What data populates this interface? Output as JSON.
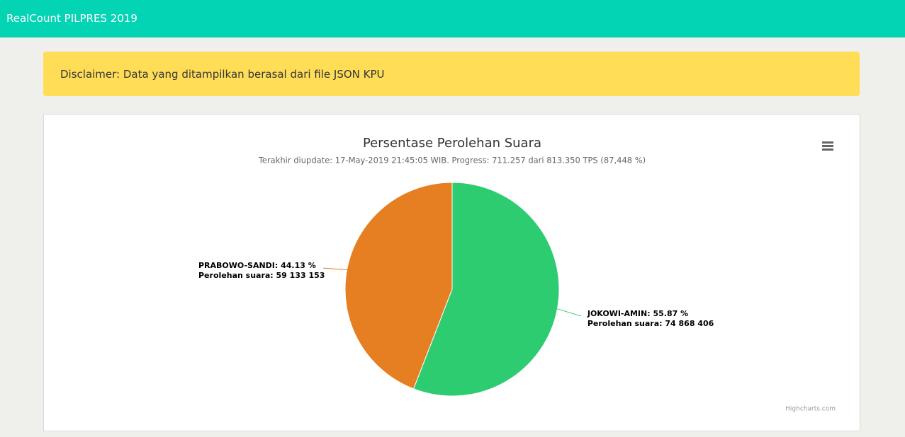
{
  "header": {
    "title": "RealCount PILPRES 2019"
  },
  "notification": {
    "text": "Disclaimer: Data yang ditampilkan berasal dari file JSON KPU"
  },
  "chart_data": {
    "type": "pie",
    "title": "Persentase Perolehan Suara",
    "subtitle": "Terakhir diupdate: 17-May-2019 21:45:05 WIB. Progress: 711.257 dari 813.350 TPS (87,448 %)",
    "values": [
      55.87,
      44.13
    ],
    "value_labels": [
      "JOKOWI-AMIN: 55.87 %",
      "PRABOWO-SANDI: 44.13 %"
    ],
    "votes": [
      74868406,
      59133153
    ],
    "vote_labels": [
      "Perolehan suara: 74 868 406",
      "Perolehan suara: 59 133 153"
    ],
    "colors": [
      "#2ecc71",
      "#e67e22"
    ],
    "credits": "Highcharts.com"
  }
}
